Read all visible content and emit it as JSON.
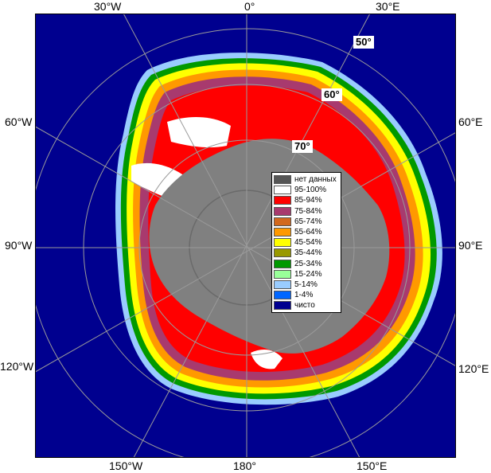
{
  "map": {
    "longitude_labels": [
      {
        "id": "lon-30w-top",
        "text": "30°W"
      },
      {
        "id": "lon-0-top",
        "text": "0°"
      },
      {
        "id": "lon-30e-top",
        "text": "30°E"
      },
      {
        "id": "lon-60w",
        "text": "60°W"
      },
      {
        "id": "lon-60e",
        "text": "60°E"
      },
      {
        "id": "lon-90w",
        "text": "90°W"
      },
      {
        "id": "lon-90e",
        "text": "90°E"
      },
      {
        "id": "lon-120w",
        "text": "120°W"
      },
      {
        "id": "lon-120e",
        "text": "120°E"
      },
      {
        "id": "lon-150w",
        "text": "150°W"
      },
      {
        "id": "lon-180",
        "text": "180°"
      },
      {
        "id": "lon-150e",
        "text": "150°E"
      }
    ],
    "latitude_labels": [
      {
        "id": "lat-50",
        "text": "50°"
      },
      {
        "id": "lat-60",
        "text": "60°"
      },
      {
        "id": "lat-70",
        "text": "70°"
      }
    ],
    "colors": {
      "ocean": "#00008f",
      "land": "#808080",
      "no_data": "#555555"
    }
  },
  "legend": {
    "items": [
      {
        "label": "нет данных",
        "color": "#555555"
      },
      {
        "label": "95-100%",
        "color": "#ffffff"
      },
      {
        "label": "85-94%",
        "color": "#ff0000"
      },
      {
        "label": "75-84%",
        "color": "#a83a6e"
      },
      {
        "label": "65-74%",
        "color": "#d2691e"
      },
      {
        "label": "55-64%",
        "color": "#ff9900"
      },
      {
        "label": "45-54%",
        "color": "#ffff00"
      },
      {
        "label": "35-44%",
        "color": "#999900"
      },
      {
        "label": "25-34%",
        "color": "#009900"
      },
      {
        "label": "15-24%",
        "color": "#99ff99"
      },
      {
        "label": "5-14%",
        "color": "#99ccff"
      },
      {
        "label": "1-4%",
        "color": "#0066ff"
      },
      {
        "label": "чисто",
        "color": "#00008f"
      }
    ]
  }
}
